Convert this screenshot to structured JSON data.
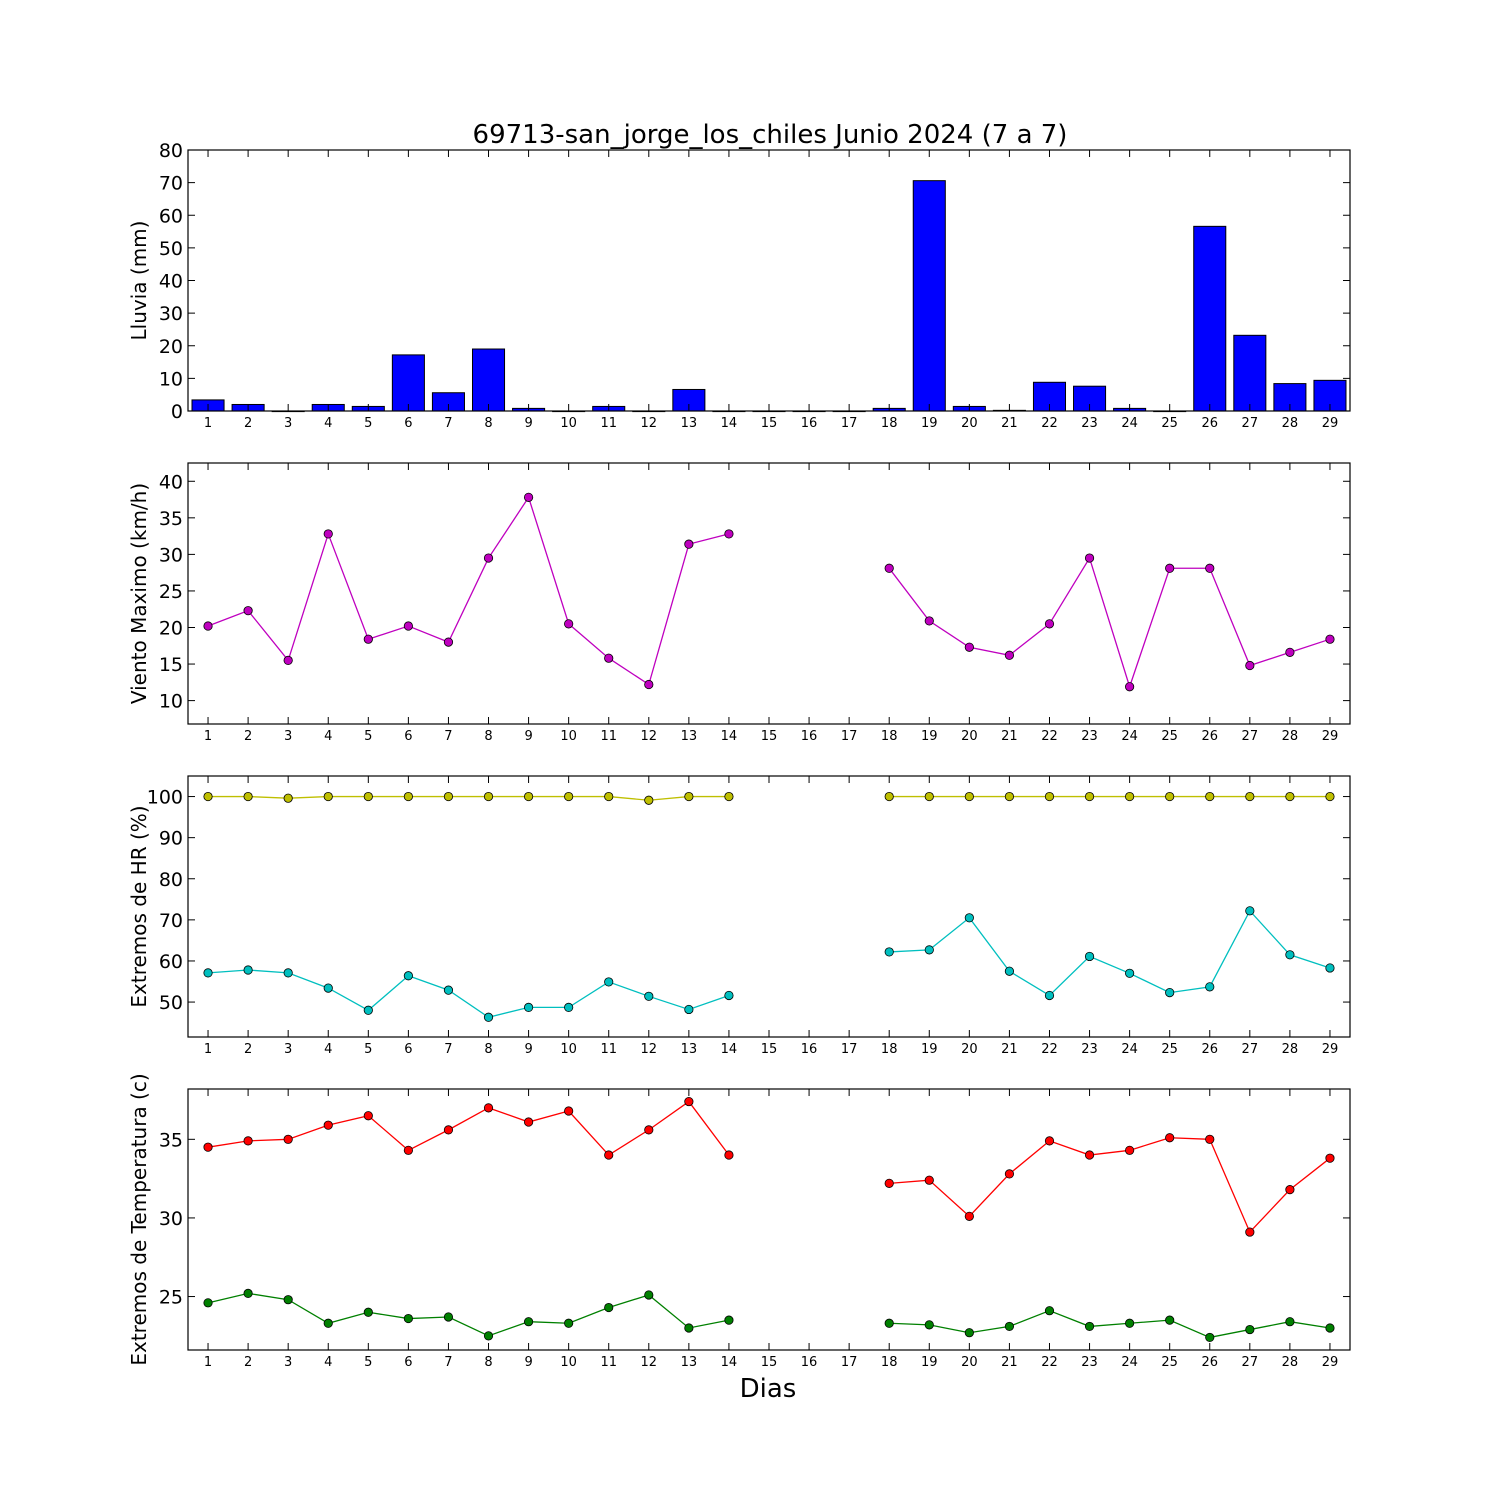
{
  "figure": {
    "title": "69713-san_jorge_los_chiles Junio 2024  (7 a 7)",
    "xlabel": "Dias"
  },
  "chart_data": [
    {
      "type": "bar",
      "title": "69713-san_jorge_los_chiles Junio 2024  (7 a 7)",
      "xlabel": "",
      "ylabel": "Lluvia (mm)",
      "ylim": [
        0,
        80
      ],
      "yticks": [
        0,
        10,
        20,
        30,
        40,
        50,
        60,
        70,
        80
      ],
      "xlim": [
        0.5,
        29.5
      ],
      "categories": [
        1,
        2,
        3,
        4,
        5,
        6,
        7,
        8,
        9,
        10,
        11,
        12,
        13,
        14,
        15,
        16,
        17,
        18,
        19,
        20,
        21,
        22,
        23,
        24,
        25,
        26,
        27,
        28,
        29
      ],
      "values": [
        3.4,
        2.0,
        0.0,
        2.0,
        1.4,
        17.2,
        5.6,
        19.0,
        0.8,
        0.0,
        1.4,
        0.0,
        6.6,
        0.0,
        0.0,
        0.0,
        0.0,
        0.8,
        70.6,
        1.4,
        0.2,
        8.8,
        7.6,
        0.8,
        0.0,
        56.6,
        23.2,
        8.4,
        9.4
      ],
      "color": "#0000ff",
      "grid": false
    },
    {
      "type": "line",
      "title": "",
      "xlabel": "",
      "ylabel": "Viento Maximo (km/h)",
      "ylim": [
        6.8,
        42.5
      ],
      "yticks": [
        10,
        15,
        20,
        25,
        30,
        35,
        40
      ],
      "xlim": [
        0.5,
        29.5
      ],
      "categories": [
        1,
        2,
        3,
        4,
        5,
        6,
        7,
        8,
        9,
        10,
        11,
        12,
        13,
        14,
        15,
        16,
        17,
        18,
        19,
        20,
        21,
        22,
        23,
        24,
        25,
        26,
        27,
        28,
        29
      ],
      "series": [
        {
          "color": "#bf00bf",
          "values": [
            20.2,
            22.3,
            15.5,
            32.8,
            18.4,
            20.2,
            18.0,
            29.5,
            37.8,
            20.5,
            15.8,
            12.2,
            31.4,
            32.8,
            null,
            null,
            null,
            28.1,
            20.9,
            17.3,
            16.2,
            20.5,
            29.5,
            11.9,
            28.1,
            28.1,
            14.8,
            16.6,
            18.4
          ]
        }
      ],
      "grid": false
    },
    {
      "type": "line",
      "title": "",
      "xlabel": "",
      "ylabel": "Extremos de HR (%)",
      "ylim": [
        41.5,
        105
      ],
      "yticks": [
        50,
        60,
        70,
        80,
        90,
        100
      ],
      "xlim": [
        0.5,
        29.5
      ],
      "categories": [
        1,
        2,
        3,
        4,
        5,
        6,
        7,
        8,
        9,
        10,
        11,
        12,
        13,
        14,
        15,
        16,
        17,
        18,
        19,
        20,
        21,
        22,
        23,
        24,
        25,
        26,
        27,
        28,
        29
      ],
      "series": [
        {
          "color": "#bfbf00",
          "values": [
            100,
            100,
            99.6,
            100,
            100,
            100,
            100,
            100,
            100,
            100,
            100,
            99.1,
            100,
            100,
            null,
            null,
            null,
            100,
            100,
            100,
            100,
            100,
            100,
            100,
            100,
            100,
            100,
            100,
            100
          ]
        },
        {
          "color": "#00bfbf",
          "values": [
            57.1,
            57.8,
            57.1,
            53.4,
            48.0,
            56.4,
            52.9,
            46.3,
            48.7,
            48.7,
            54.9,
            51.4,
            48.2,
            51.6,
            null,
            null,
            null,
            62.2,
            62.7,
            70.5,
            57.5,
            51.6,
            61.1,
            57.0,
            52.3,
            53.7,
            72.2,
            61.5,
            58.3
          ]
        }
      ],
      "grid": false
    },
    {
      "type": "line",
      "title": "",
      "xlabel": "Dias",
      "ylabel": "Extremos de Temperatura (c)",
      "ylim": [
        21.6,
        38.2
      ],
      "yticks": [
        25,
        30,
        35
      ],
      "xlim": [
        0.5,
        29.5
      ],
      "categories": [
        1,
        2,
        3,
        4,
        5,
        6,
        7,
        8,
        9,
        10,
        11,
        12,
        13,
        14,
        15,
        16,
        17,
        18,
        19,
        20,
        21,
        22,
        23,
        24,
        25,
        26,
        27,
        28,
        29
      ],
      "series": [
        {
          "color": "#ff0000",
          "values": [
            34.5,
            34.9,
            35.0,
            35.9,
            36.5,
            34.3,
            35.6,
            37.0,
            36.1,
            36.8,
            34.0,
            35.6,
            37.4,
            34.0,
            null,
            null,
            null,
            32.2,
            32.4,
            30.1,
            32.8,
            34.9,
            34.0,
            34.3,
            35.1,
            35.0,
            29.1,
            31.8,
            33.8
          ]
        },
        {
          "color": "#008000",
          "values": [
            24.6,
            25.2,
            24.8,
            23.3,
            24.0,
            23.6,
            23.7,
            22.5,
            23.4,
            23.3,
            24.3,
            25.1,
            23.0,
            23.5,
            null,
            null,
            null,
            23.3,
            23.2,
            22.7,
            23.1,
            24.1,
            23.1,
            23.3,
            23.5,
            22.4,
            22.9,
            23.4,
            23.0
          ]
        }
      ],
      "grid": false
    }
  ]
}
